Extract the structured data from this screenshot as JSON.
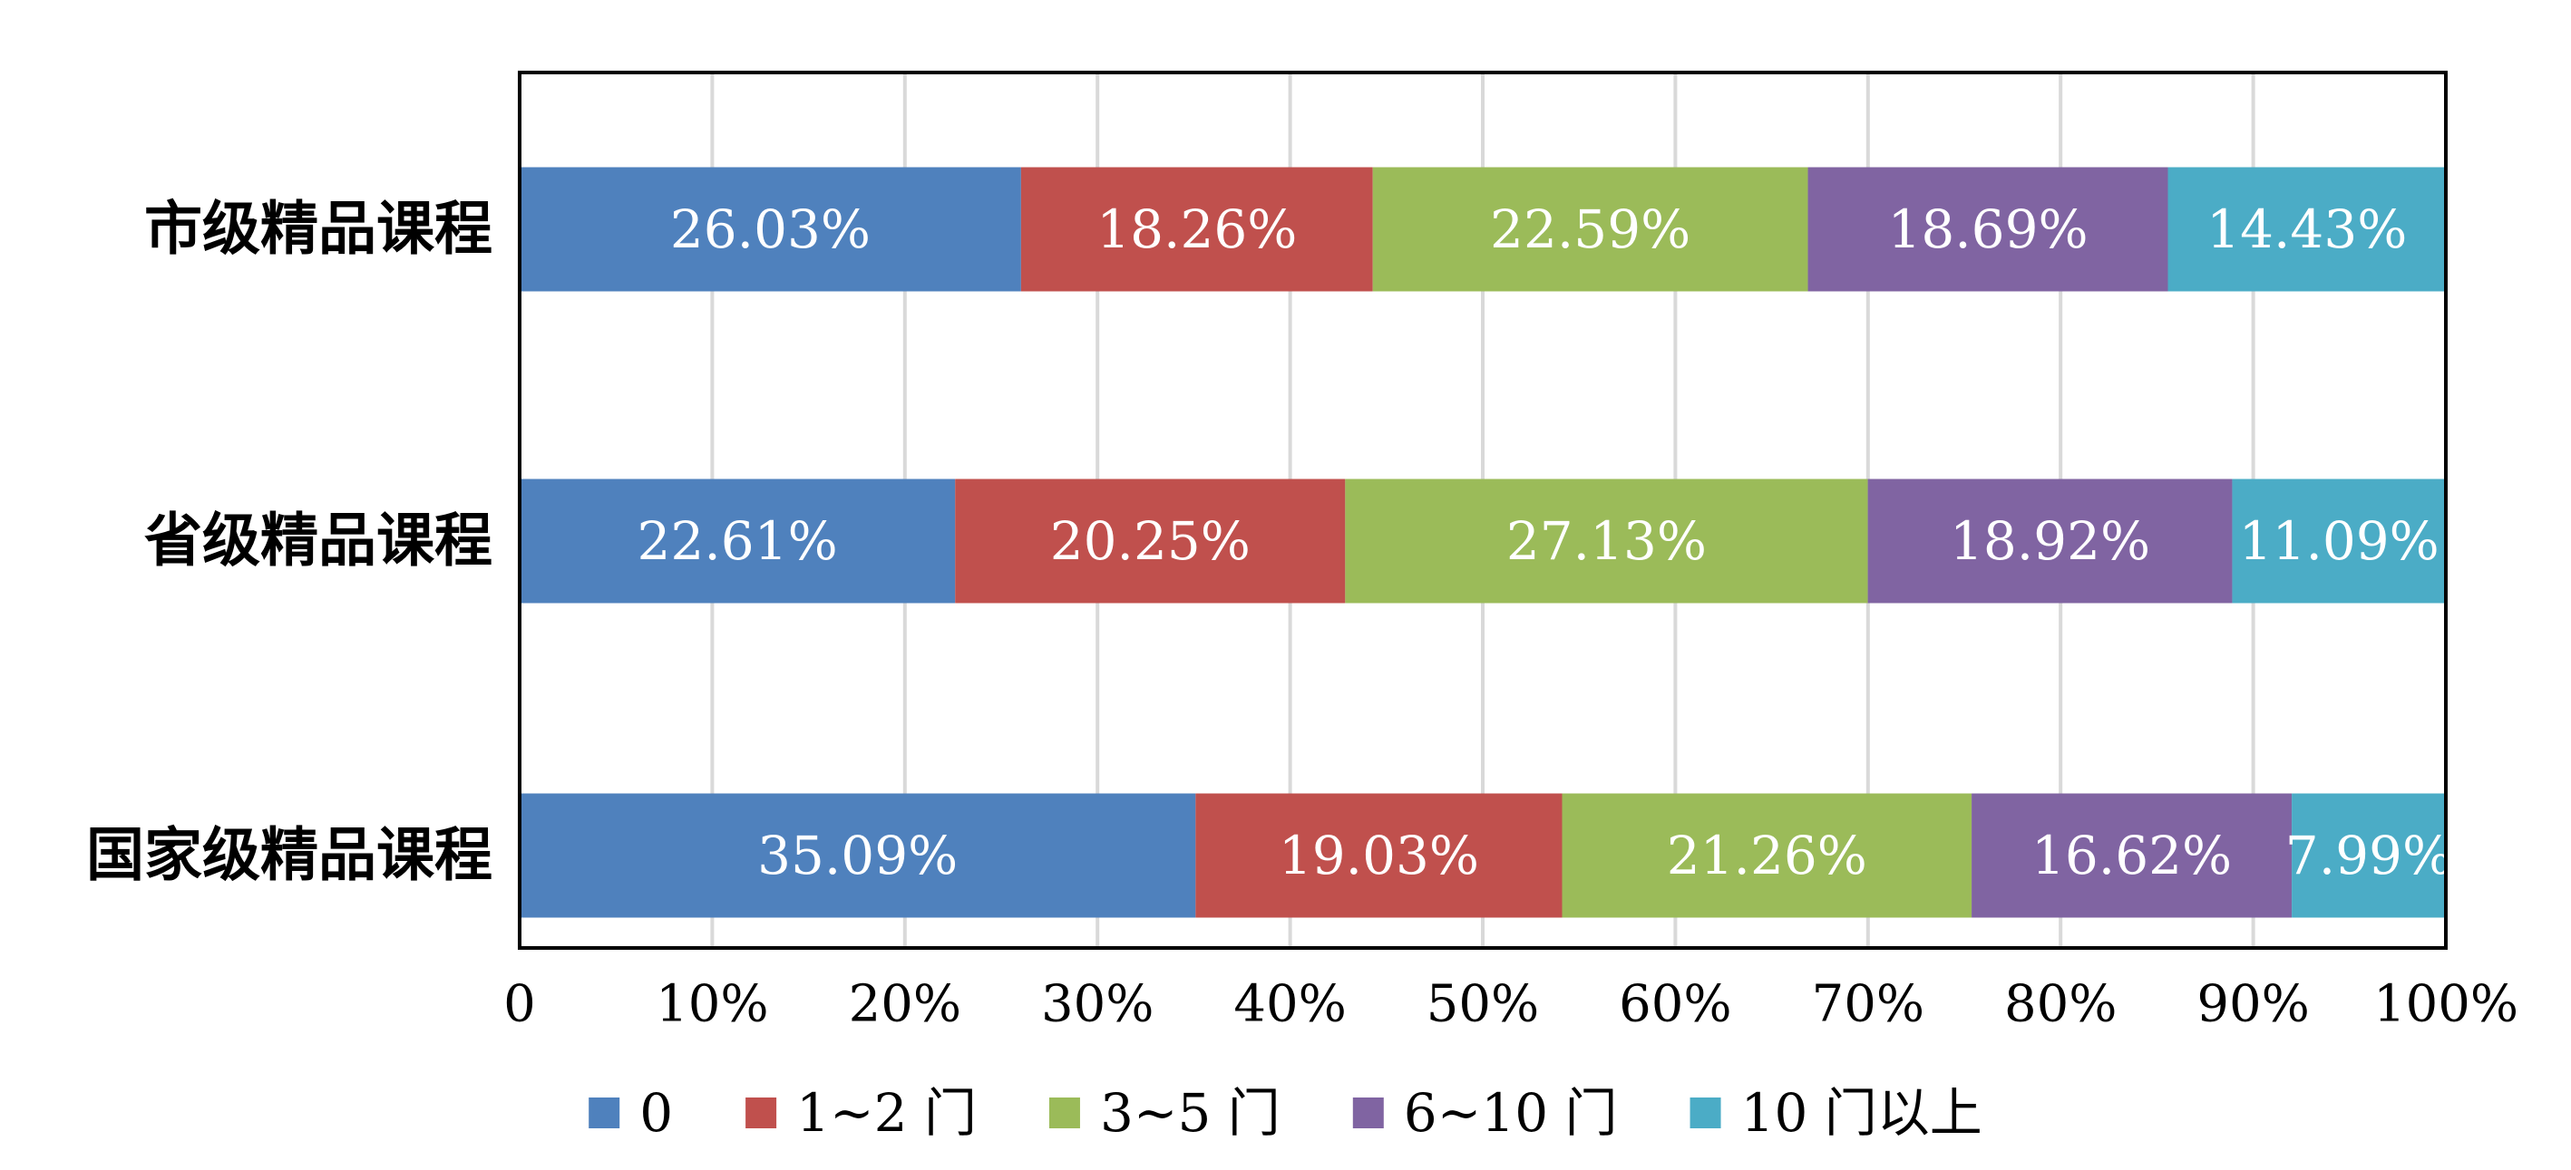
{
  "chart_data": {
    "type": "bar",
    "orientation": "horizontal",
    "stacked": "percent",
    "categories": [
      "市级精品课程",
      "省级精品课程",
      "国家级精品课程"
    ],
    "series": [
      {
        "name": "0",
        "color": "#4f81bd",
        "values": [
          26.03,
          22.61,
          35.09
        ],
        "labels": [
          "26.03%",
          "22.61%",
          "35.09%"
        ]
      },
      {
        "name": "1~2 门",
        "color": "#c0504d",
        "values": [
          18.26,
          20.25,
          19.03
        ],
        "labels": [
          "18.26%",
          "20.25%",
          "19.03%"
        ]
      },
      {
        "name": "3~5 门",
        "color": "#9bbb59",
        "values": [
          22.59,
          27.13,
          21.26
        ],
        "labels": [
          "22.59%",
          "27.13%",
          "21.26%"
        ]
      },
      {
        "name": "6~10 门",
        "color": "#8064a2",
        "values": [
          18.69,
          18.92,
          16.62
        ],
        "labels": [
          "18.69%",
          "18.92%",
          "16.62%"
        ]
      },
      {
        "name": "10 门以上",
        "color": "#4bacc6",
        "values": [
          14.43,
          11.09,
          7.99
        ],
        "labels": [
          "14.43%",
          "11.09%",
          "7.99%"
        ]
      }
    ],
    "xlim": [
      0,
      100
    ],
    "xticks": [
      "0",
      "10%",
      "20%",
      "30%",
      "40%",
      "50%",
      "60%",
      "70%",
      "80%",
      "90%",
      "100%"
    ],
    "grid": true,
    "legend_position": "bottom"
  }
}
